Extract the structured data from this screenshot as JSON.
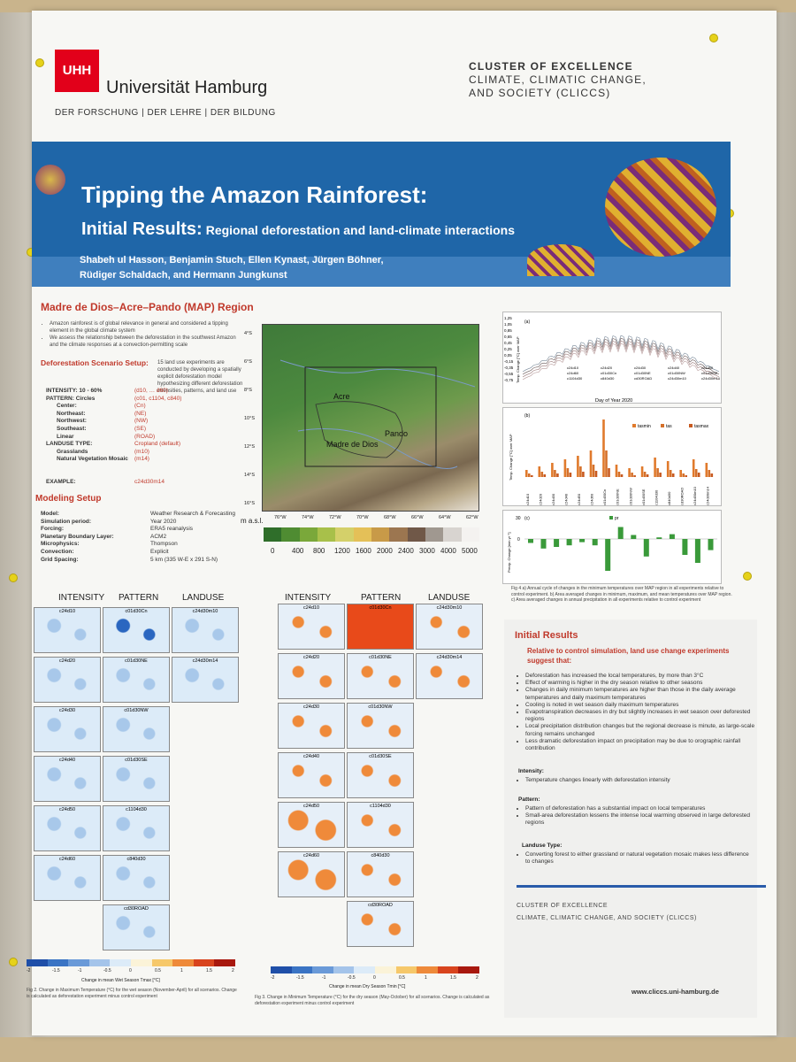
{
  "colors": {
    "banner": "#1f66a8",
    "accent_red": "#c0392b",
    "uhh_red": "#e2001a",
    "rule_blue": "#2a5caa"
  },
  "header": {
    "logo_mark": "UHH",
    "university": "Universität Hamburg",
    "university_sub": "DER FORSCHUNG | DER LEHRE | DER BILDUNG",
    "cluster_line1": "CLUSTER OF EXCELLENCE",
    "cluster_line2": "CLIMATE, CLIMATIC CHANGE,",
    "cluster_line3": "AND SOCIETY (CLICCS)"
  },
  "banner": {
    "title1": "Tipping the Amazon Rainforest:",
    "title2_prefix": "Initial Results:",
    "title2_sub": "Regional deforestation and land-climate interactions",
    "authors_line1": "Shabeh ul Hasson, Benjamin Stuch, Ellen Kynast, Jürgen Böhner,",
    "authors_line2": "Rüdiger Schaldach, and Hermann Jungkunst"
  },
  "region": {
    "title": "Madre de Dios–Acre–Pando (MAP) Region",
    "bullet1": "Amazon rainforest is of global relevance in general and considered a tipping element in the global climate system",
    "bullet2": "We assess the relationship between the deforestation in the southwest Amazon and the climate responses at a convection-permitting scale"
  },
  "scenario": {
    "title": "Deforestation Scenario Setup:",
    "intro": "15 land use experiments are conducted by developing a spatially explicit deforestation model hypothesizing different deforestation intensities, patterns, and land use",
    "rows": [
      {
        "k": "INTENSITY:  10 - 60%",
        "v": "(d10, … d60)"
      },
      {
        "k": "PATTERN:    Circles",
        "v": "(c01, c1104, c840)"
      },
      {
        "k": "Center:",
        "v": "(Cn)"
      },
      {
        "k": "Northeast:",
        "v": "(NE)"
      },
      {
        "k": "Northwest:",
        "v": "(NW)"
      },
      {
        "k": "Southeast:",
        "v": "(SE)"
      },
      {
        "k": "Linear",
        "v": "(ROAD)"
      },
      {
        "k": "LANDUSE TYPE:",
        "v": "Cropland (default)"
      },
      {
        "k": "Grasslands",
        "v": "(m10)"
      },
      {
        "k": "Natural Vegetation Mosaic",
        "v": "(m14)"
      }
    ],
    "example_k": "EXAMPLE:",
    "example_v": "c24d30m14"
  },
  "modeling": {
    "title": "Modeling Setup",
    "rows": [
      {
        "k": "Model:",
        "v": "Weather Research & Forecasting"
      },
      {
        "k": "Simulation period:",
        "v": "Year 2020"
      },
      {
        "k": "Forcing:",
        "v": "ERA5 reanalysis"
      },
      {
        "k": "Planetary Boundary Layer:",
        "v": "ACM2"
      },
      {
        "k": "Microphysics:",
        "v": "Thompson"
      },
      {
        "k": "Convection:",
        "v": "Explicit"
      },
      {
        "k": "Grid Spacing:",
        "v": "5 km (335 W-E x 291 S-N)"
      }
    ]
  },
  "map": {
    "lat_labels": [
      "4°S",
      "6°S",
      "8°S",
      "10°S",
      "12°S",
      "14°S",
      "16°S"
    ],
    "lon_labels": [
      "76°W",
      "74°W",
      "72°W",
      "70°W",
      "68°W",
      "66°W",
      "64°W",
      "62°W"
    ],
    "places": [
      "Acre",
      "Pando",
      "Madre de Dios"
    ],
    "legend_unit": "m a.s.l.",
    "legend_ticks": [
      "0",
      "400",
      "800",
      "1200",
      "1600",
      "2000",
      "2400",
      "3000",
      "4000",
      "5000"
    ]
  },
  "chart_a": {
    "ylabel": "Temp. Change [°C] over MAP",
    "xlabel": "Day of Year 2020",
    "ticks_y": [
      "1,25",
      "1,05",
      "0,85",
      "0,65",
      "0,45",
      "0,25",
      "0,05",
      "-0,15",
      "-0,35",
      "-0,55",
      "-0,75"
    ],
    "series_labels": [
      "c24d10",
      "c24d20",
      "c24d30",
      "c24d40",
      "c24d50",
      "c24d60",
      "c01d30Cn",
      "c01d30NE",
      "c01d30NW",
      "c01d30SE",
      "c1104d30",
      "c840d30",
      "cd30ROAD",
      "c24d30m10",
      "c24d30m14"
    ]
  },
  "chart_data": [
    {
      "type": "bar",
      "title": "",
      "ylabel": "Temp. Change [°C] over MAP",
      "categories": [
        "c24d10",
        "c24d20",
        "c24d30",
        "c24d40",
        "c24d50",
        "c24d60",
        "c01d30Cn",
        "c01d30NE",
        "c01d30NW",
        "c01d30SE",
        "c1104d30",
        "c840d30",
        "cd30ROAD",
        "c24d30m10",
        "c24d30m14"
      ],
      "series": [
        {
          "name": "tasmin",
          "values": [
            0.08,
            0.12,
            0.16,
            0.2,
            0.24,
            0.3,
            0.65,
            0.14,
            0.1,
            0.12,
            0.22,
            0.18,
            0.08,
            0.2,
            0.16
          ]
        },
        {
          "name": "tas",
          "values": [
            0.04,
            0.06,
            0.08,
            0.1,
            0.12,
            0.14,
            0.3,
            0.06,
            0.05,
            0.06,
            0.1,
            0.08,
            0.04,
            0.09,
            0.08
          ]
        },
        {
          "name": "tasmax",
          "values": [
            0.02,
            0.03,
            0.04,
            0.05,
            0.06,
            0.07,
            0.1,
            0.03,
            0.02,
            0.03,
            0.05,
            0.04,
            0.02,
            0.05,
            0.04
          ]
        }
      ],
      "ylim": [
        0,
        0.7
      ]
    },
    {
      "type": "bar",
      "title": "",
      "ylabel": "Precip. Change [mm yr⁻¹]",
      "categories": [
        "c24d10",
        "c24d20",
        "c24d30",
        "c24d40",
        "c24d50",
        "c24d60",
        "c01d30Cn",
        "c01d30NE",
        "c01d30NW",
        "c01d30SE",
        "c1104d30",
        "c840d30",
        "cd30ROAD",
        "c24d30m10",
        "c24d30m14"
      ],
      "series": [
        {
          "name": "pr",
          "values": [
            -5,
            -12,
            -10,
            -8,
            -4,
            -8,
            -40,
            15,
            5,
            -22,
            2,
            6,
            -20,
            -30,
            -14
          ]
        }
      ],
      "ylim": [
        -45,
        30
      ]
    }
  ],
  "chart_legend": {
    "tasmin": "tasmin",
    "tas": "tas",
    "tasmax": "tasmax",
    "pr": "pr",
    "panel_a": "(a)",
    "panel_b": "(b)",
    "panel_c": "(c)",
    "precip_ylabel": "Precip. Change [mm yr⁻¹]",
    "temp_ylabel": "Temp. Change [°C] over MAP",
    "y_top": "30",
    "y_zero": "0"
  },
  "fig4_caption": "Fig 4 a) Annual cycle of changes in the minimum temperatures over MAP region in all experiments relative to control experiment. b) Area averaged changes in minimum, maximum, and mean temperatures over MAP region. c) Area averaged changes in annual precipitation in all experiments relative to control experiment",
  "grid_headers": [
    "INTENSITY",
    "PATTERN",
    "LANDUSE"
  ],
  "fig2_tiles": {
    "intensity": [
      "c24d10",
      "c24d20",
      "c24d30",
      "c24d40",
      "c24d50",
      "c24d60"
    ],
    "pattern": [
      "c01d30Cn",
      "c01d30NE",
      "c01d30NW",
      "c01d30SE",
      "c1104d30",
      "c840d30",
      "cd30ROAD"
    ],
    "landuse": [
      "c24d30m10",
      "c24d30m14"
    ]
  },
  "fig2_cbar_label": "Change in mean Wet Season Tmax [°C]",
  "fig3_cbar_label": "Change in mean Dry Season Tmin [°C]",
  "fig2_cbar_ticks": [
    "-2",
    "-1.5",
    "-1",
    "-0.5",
    "0",
    "0.5",
    "1",
    "1.5",
    "2"
  ],
  "fig3_cbar_ticks": [
    "-2",
    "-1.5",
    "-1",
    "-0.5",
    "0",
    "0.5",
    "1",
    "1.5",
    "2"
  ],
  "fig2_caption": "Fig 2. Change in Maximum Temperature (°C) for the wet season (November-April) for all scenarios. Change is calculated as deforestation experiment minus control experiment",
  "fig3_caption": "Fig 3. Change in Minimum Temperature (°C) for the dry season (May-October) for all scenarios. Change is calculated as deforestation experiment minus control experiment",
  "results": {
    "title": "Initial Results",
    "subtitle": "Relative to control simulation, land use change experiments suggest that:",
    "bullets": [
      "Deforestation has increased the local temperatures, by more than 3°C",
      "Effect of warming is higher in the dry season relative to other seasons",
      "Changes in daily minimum temperatures are higher than those in the daily average temperatures and daily maximum temperatures",
      "Cooling is noted in wet season daily maximum temperatures",
      "Evapotranspiration decreases in dry but slightly increases in wet season over deforested regions",
      "Local precipitation distribution changes but the regional decrease is minute, as large-scale forcing remains unchanged",
      "Less dramatic deforestation impact on precipitation may be due to orographic rainfall contribution"
    ],
    "intensity_h": "Intensity:",
    "intensity_b": "Temperature changes linearly with deforestation intensity",
    "pattern_h": "Pattern:",
    "pattern_b1": "Pattern of deforestation has a substantial impact on local temperatures",
    "pattern_b2": "Small-area deforestation lessens the intense local warming observed in large deforested regions",
    "landuse_h": "Landuse Type:",
    "landuse_b": "Converting forest to either grassland or natural vegetation mosaic makes less difference to changes"
  },
  "footer": {
    "cluster1": "CLUSTER OF EXCELLENCE",
    "cluster2": "CLIMATE, CLIMATIC CHANGE, AND SOCIETY (CLICCS)",
    "url": "www.cliccs.uni-hamburg.de"
  }
}
